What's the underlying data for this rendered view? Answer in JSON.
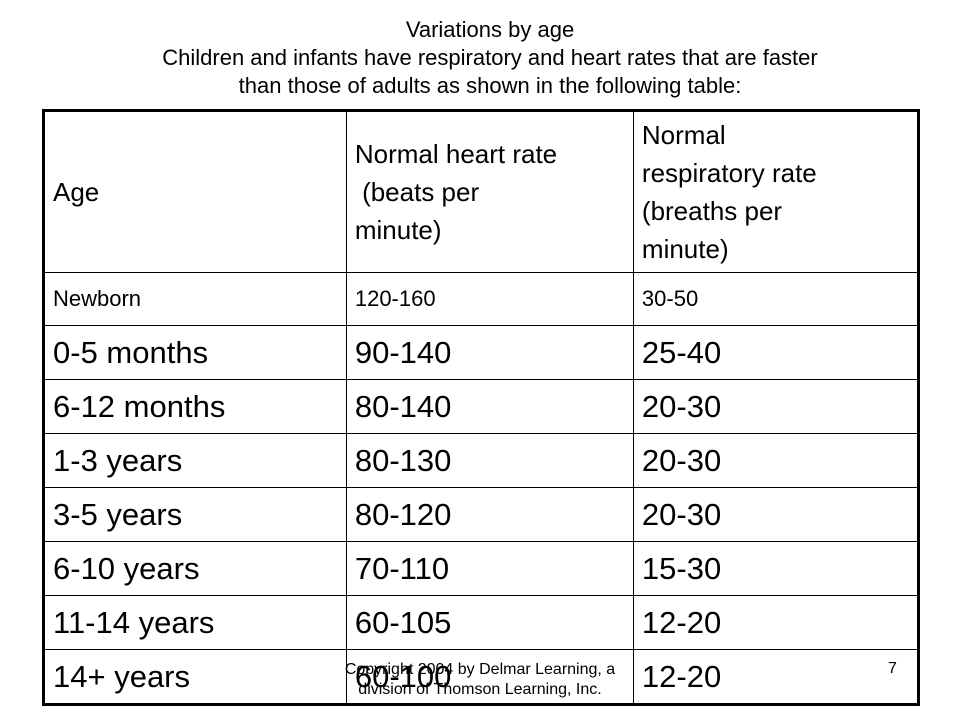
{
  "title": {
    "line1": "Variations by age",
    "line2": "Children and infants have respiratory and heart rates that are faster",
    "line3": "than those of adults as shown in the following table:"
  },
  "table": {
    "headers": [
      [
        "Age"
      ],
      [
        "Normal heart rate",
        " (beats per",
        "minute)"
      ],
      [
        "Normal",
        "respiratory rate",
        "(breaths per",
        "minute)"
      ]
    ],
    "rows": [
      [
        "Newborn",
        "120-160",
        "30-50"
      ],
      [
        "0-5 months",
        "90-140",
        "25-40"
      ],
      [
        "6-12 months",
        "80-140",
        "20-30"
      ],
      [
        "1-3 years",
        "80-130",
        "20-30"
      ],
      [
        "3-5 years",
        "80-120",
        "20-30"
      ],
      [
        "6-10 years",
        "70-110",
        "15-30"
      ],
      [
        "11-14 years",
        "60-105",
        "12-20"
      ],
      [
        "14+ years",
        "60-100",
        "12-20"
      ]
    ]
  },
  "footer": {
    "copyright": "Copyright 2004 by Delmar Learning, a division of Thomson Learning, Inc.",
    "page_number": "7"
  }
}
